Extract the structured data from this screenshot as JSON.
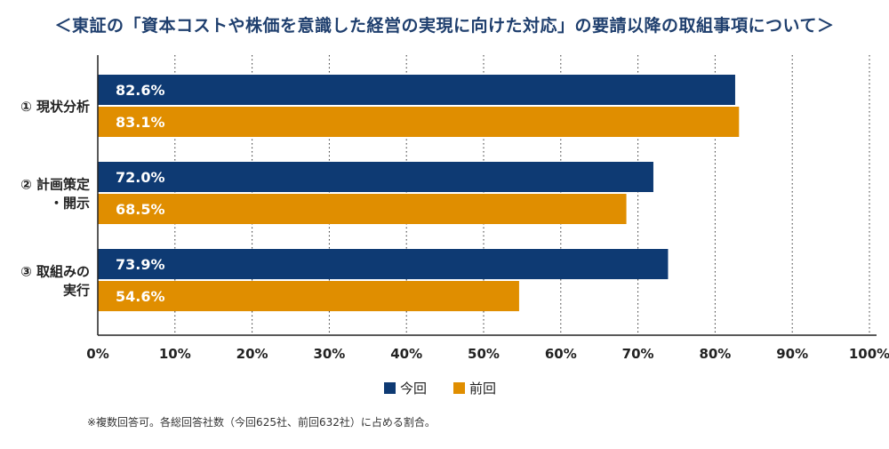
{
  "chart_data": {
    "type": "bar",
    "orientation": "horizontal",
    "title": "＜東証の「資本コストや株価を意識した経営の実現に向けた対応」の要請以降の取組事項について＞",
    "categories": [
      [
        "① 現状分析"
      ],
      [
        "② 計画策定",
        "・開示"
      ],
      [
        "③ 取組みの",
        "実行"
      ]
    ],
    "series": [
      {
        "name": "今回",
        "color": "#0e3a73",
        "values": [
          82.6,
          72.0,
          73.9
        ],
        "labels": [
          "82.6%",
          "72.0%",
          "73.9%"
        ]
      },
      {
        "name": "前回",
        "color": "#e08e00",
        "values": [
          83.1,
          68.5,
          54.6
        ],
        "labels": [
          "83.1%",
          "68.5%",
          "54.6%"
        ]
      }
    ],
    "xlim": [
      0,
      100
    ],
    "xticks": [
      "0%",
      "10%",
      "20%",
      "30%",
      "40%",
      "50%",
      "60%",
      "70%",
      "80%",
      "90%",
      "100%"
    ],
    "grid": "vertical dotted",
    "legend": "bottom-center",
    "footnote": "※複数回答可。各総回答社数（今回625社、前回632社）に占める割合。"
  }
}
